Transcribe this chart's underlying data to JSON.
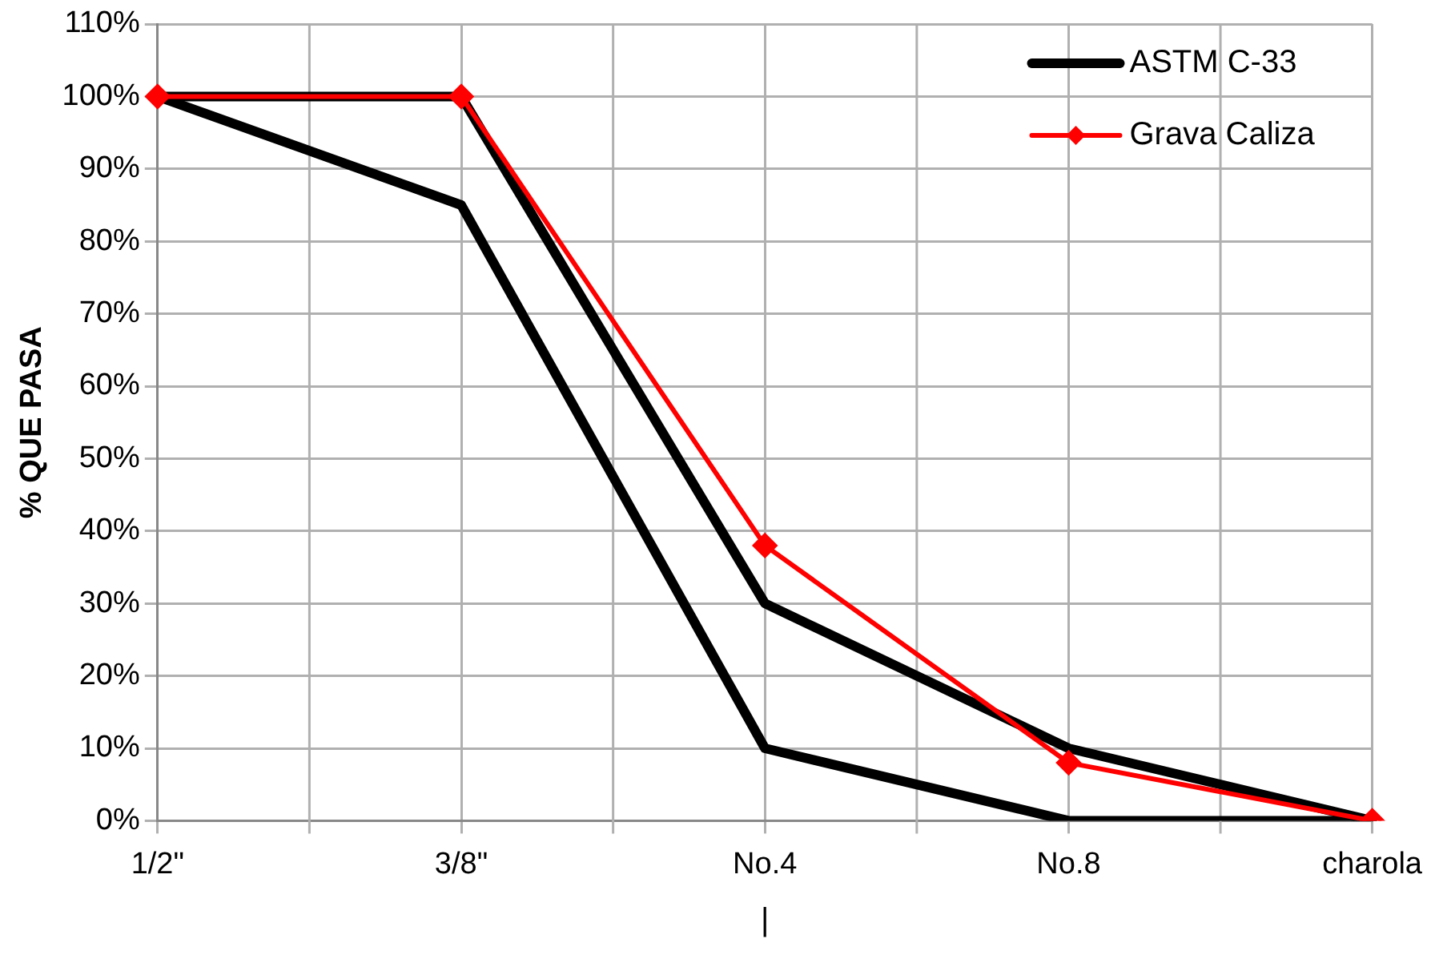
{
  "chart_data": {
    "type": "line",
    "ylabel": "% QUE PASA",
    "xlabel": "|",
    "categories": [
      "1/2\"",
      "3/8\"",
      "No.4",
      "No.8",
      "charola"
    ],
    "ylim": [
      0,
      110
    ],
    "yticks": [
      {
        "value": 0,
        "label": "0%"
      },
      {
        "value": 10,
        "label": "10%"
      },
      {
        "value": 20,
        "label": "20%"
      },
      {
        "value": 30,
        "label": "30%"
      },
      {
        "value": 40,
        "label": "40%"
      },
      {
        "value": 50,
        "label": "50%"
      },
      {
        "value": 60,
        "label": "60%"
      },
      {
        "value": 70,
        "label": "70%"
      },
      {
        "value": 80,
        "label": "80%"
      },
      {
        "value": 90,
        "label": "90%"
      },
      {
        "value": 100,
        "label": "100%"
      },
      {
        "value": 110,
        "label": "110%"
      }
    ],
    "grid": true,
    "legend": "top right",
    "series": [
      {
        "name": "ASTM C-33",
        "color": "#000000",
        "marker": "none",
        "values": [
          100,
          100,
          30,
          10,
          0
        ]
      },
      {
        "color": "#000000",
        "marker": "none",
        "values": [
          100,
          85,
          10,
          0,
          0
        ]
      },
      {
        "name": "Grava Caliza",
        "color": "#ff0000",
        "marker": "diamond",
        "values": [
          100,
          100,
          38,
          8,
          0
        ]
      }
    ]
  }
}
